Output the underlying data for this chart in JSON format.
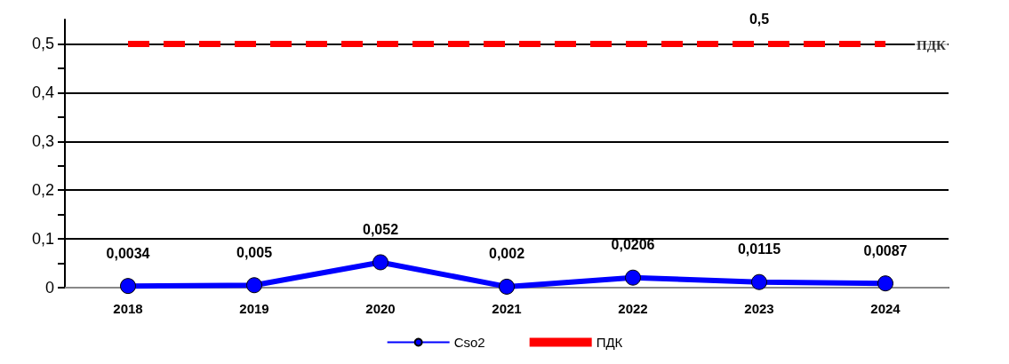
{
  "chart_data": {
    "type": "line",
    "categories": [
      "2018",
      "2019",
      "2020",
      "2021",
      "2022",
      "2023",
      "2024"
    ],
    "series": [
      {
        "name": "Cso2",
        "color": "#0000ff",
        "marker": "circle",
        "line_style": "solid",
        "values": [
          0.0034,
          0.005,
          0.052,
          0.002,
          0.0206,
          0.0115,
          0.0087
        ],
        "value_labels": [
          "0,0034",
          "0,005",
          "0,052",
          "0,002",
          "0,0206",
          "0,0115",
          "0,0087"
        ]
      },
      {
        "name": "ПДК",
        "color": "#ff0000",
        "marker": "none",
        "line_style": "dashed",
        "values": [
          0.5,
          0.5,
          0.5,
          0.5,
          0.5,
          0.5,
          0.5
        ],
        "value_labels": [
          null,
          null,
          null,
          null,
          null,
          "0,5",
          null
        ]
      }
    ],
    "ylim": [
      0,
      0.55
    ],
    "yticks": [
      {
        "value": 0,
        "label": "0"
      },
      {
        "value": 0.05,
        "label": null
      },
      {
        "value": 0.1,
        "label": "0,1"
      },
      {
        "value": 0.15,
        "label": null
      },
      {
        "value": 0.2,
        "label": "0,2"
      },
      {
        "value": 0.25,
        "label": null
      },
      {
        "value": 0.3,
        "label": "0,3"
      },
      {
        "value": 0.35,
        "label": null
      },
      {
        "value": 0.4,
        "label": "0,4"
      },
      {
        "value": 0.45,
        "label": null
      },
      {
        "value": 0.5,
        "label": "0,5"
      }
    ],
    "grid": "y",
    "legend": "bottom",
    "annotations": [
      {
        "text": "ПДК",
        "x": "2024",
        "y": 0.5
      }
    ]
  }
}
